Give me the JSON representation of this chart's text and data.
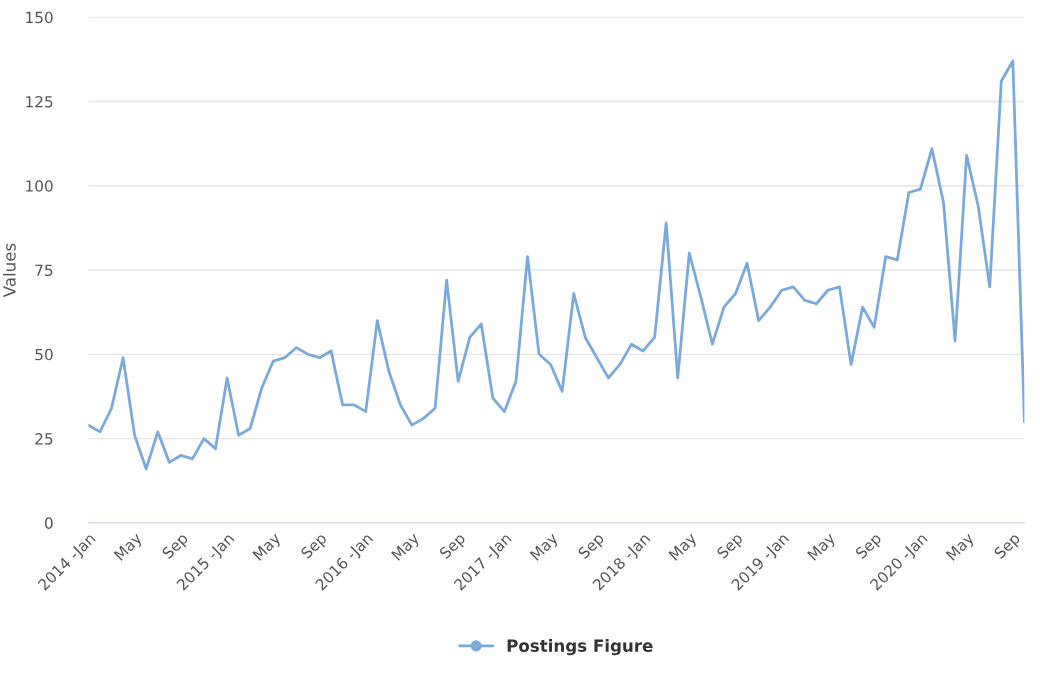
{
  "chart_data": {
    "type": "line",
    "ylabel": "Values",
    "ylim": [
      0,
      150
    ],
    "yticks": [
      0,
      25,
      50,
      75,
      100,
      125,
      150
    ],
    "grid": "y",
    "legend": "bottom",
    "categories": [
      "2014 -Jan",
      null,
      null,
      null,
      "May",
      null,
      null,
      null,
      "Sep",
      null,
      null,
      null,
      "2015 -Jan",
      null,
      null,
      null,
      "May",
      null,
      null,
      null,
      "Sep",
      null,
      null,
      null,
      "2016 -Jan",
      null,
      null,
      null,
      "May",
      null,
      null,
      null,
      "Sep",
      null,
      null,
      null,
      "2017 -Jan",
      null,
      null,
      null,
      "May",
      null,
      null,
      null,
      "Sep",
      null,
      null,
      null,
      "2018 -Jan",
      null,
      null,
      null,
      "May",
      null,
      null,
      null,
      "Sep",
      null,
      null,
      null,
      "2019 -Jan",
      null,
      null,
      null,
      "May",
      null,
      null,
      null,
      "Sep",
      null,
      null,
      null,
      "2020 -Jan",
      null,
      null,
      null,
      "May",
      null,
      null,
      null,
      "Sep",
      null
    ],
    "series": [
      {
        "name": "Postings Figure",
        "color": "#7aaadc",
        "values": [
          29,
          27,
          34,
          49,
          26,
          16,
          27,
          18,
          20,
          19,
          25,
          22,
          43,
          26,
          28,
          40,
          48,
          49,
          52,
          50,
          49,
          51,
          35,
          35,
          33,
          60,
          45,
          35,
          29,
          31,
          34,
          72,
          42,
          55,
          59,
          37,
          33,
          42,
          79,
          50,
          47,
          39,
          68,
          55,
          49,
          43,
          47,
          53,
          51,
          55,
          89,
          43,
          80,
          67,
          53,
          64,
          68,
          77,
          60,
          64,
          69,
          70,
          66,
          65,
          69,
          70,
          47,
          64,
          58,
          79,
          78,
          98,
          99,
          111,
          95,
          54,
          109,
          94,
          70,
          131,
          137,
          30
        ]
      }
    ]
  }
}
